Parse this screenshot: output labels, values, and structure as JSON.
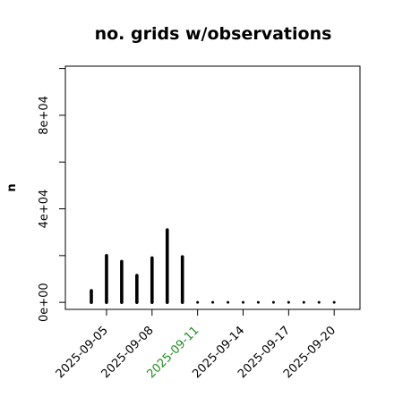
{
  "chart_data": {
    "type": "bar",
    "title": "no. grids w/observations",
    "ylabel": "n",
    "xlabel": "",
    "ylim": [
      -3000,
      101000
    ],
    "y_ticks": [
      0,
      40000,
      80000
    ],
    "y_tick_labels": [
      "0e+00",
      "4e+04",
      "8e+04"
    ],
    "x_ticks": [
      "2025-09-05",
      "2025-09-08",
      "2025-09-11",
      "2025-09-14",
      "2025-09-17",
      "2025-09-20"
    ],
    "highlighted_x_tick": "2025-09-11",
    "colors": {
      "bars": "#000000",
      "text": "#000000",
      "highlight": "#228B22",
      "frame": "#000000"
    },
    "categories": [
      "2025-09-04",
      "2025-09-05",
      "2025-09-06",
      "2025-09-07",
      "2025-09-08",
      "2025-09-09",
      "2025-09-10",
      "2025-09-11",
      "2025-09-12",
      "2025-09-13",
      "2025-09-14",
      "2025-09-15",
      "2025-09-16",
      "2025-09-17",
      "2025-09-18",
      "2025-09-19",
      "2025-09-20"
    ],
    "values": [
      5000,
      20000,
      17500,
      11500,
      19000,
      31000,
      19500,
      0,
      0,
      0,
      0,
      0,
      0,
      0,
      0,
      0,
      0
    ]
  }
}
